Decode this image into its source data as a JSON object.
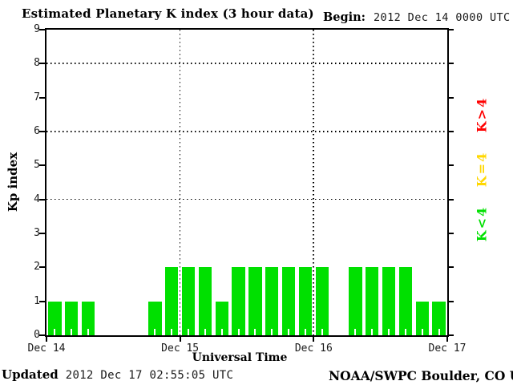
{
  "header": {
    "title": "Estimated Planetary K index (3 hour data)",
    "begin_label": "Begin:",
    "begin_value": "2012 Dec 14 0000 UTC"
  },
  "footer": {
    "updated_label": "Updated",
    "updated_value": "2012 Dec 17 02:55:05 UTC",
    "credit": "NOAA/SWPC Boulder, CO USA"
  },
  "chart_data": {
    "type": "bar",
    "title": "Estimated Planetary K index (3 hour data)",
    "xlabel": "Universal Time",
    "ylabel": "Kp index",
    "ylim": [
      0,
      9
    ],
    "yticks": [
      0,
      1,
      2,
      3,
      4,
      5,
      6,
      7,
      8,
      9
    ],
    "gridlines_y": [
      4,
      6,
      8
    ],
    "grid": "dotted",
    "start_utc": "2012 Dec 14 0000 UTC",
    "hours_per_bar": 3,
    "bars_per_day": 8,
    "x_day_labels": [
      "Dec 14",
      "Dec 15",
      "Dec 16",
      "Dec 17"
    ],
    "values": [
      1,
      1,
      1,
      0,
      0,
      0,
      1,
      2,
      2,
      2,
      1,
      2,
      2,
      2,
      2,
      2,
      2,
      0,
      2,
      2,
      2,
      2,
      1,
      1
    ],
    "color_rule": {
      "k_lt_4": "#00E000",
      "k_eq_4": "#FFD700",
      "k_gt_4": "#FF0000"
    },
    "legend_position": "right",
    "legend": [
      {
        "label": "K>4",
        "color": "#FF0000"
      },
      {
        "label": "K=4",
        "color": "#FFD700"
      },
      {
        "label": "K<4",
        "color": "#00E000"
      }
    ]
  }
}
